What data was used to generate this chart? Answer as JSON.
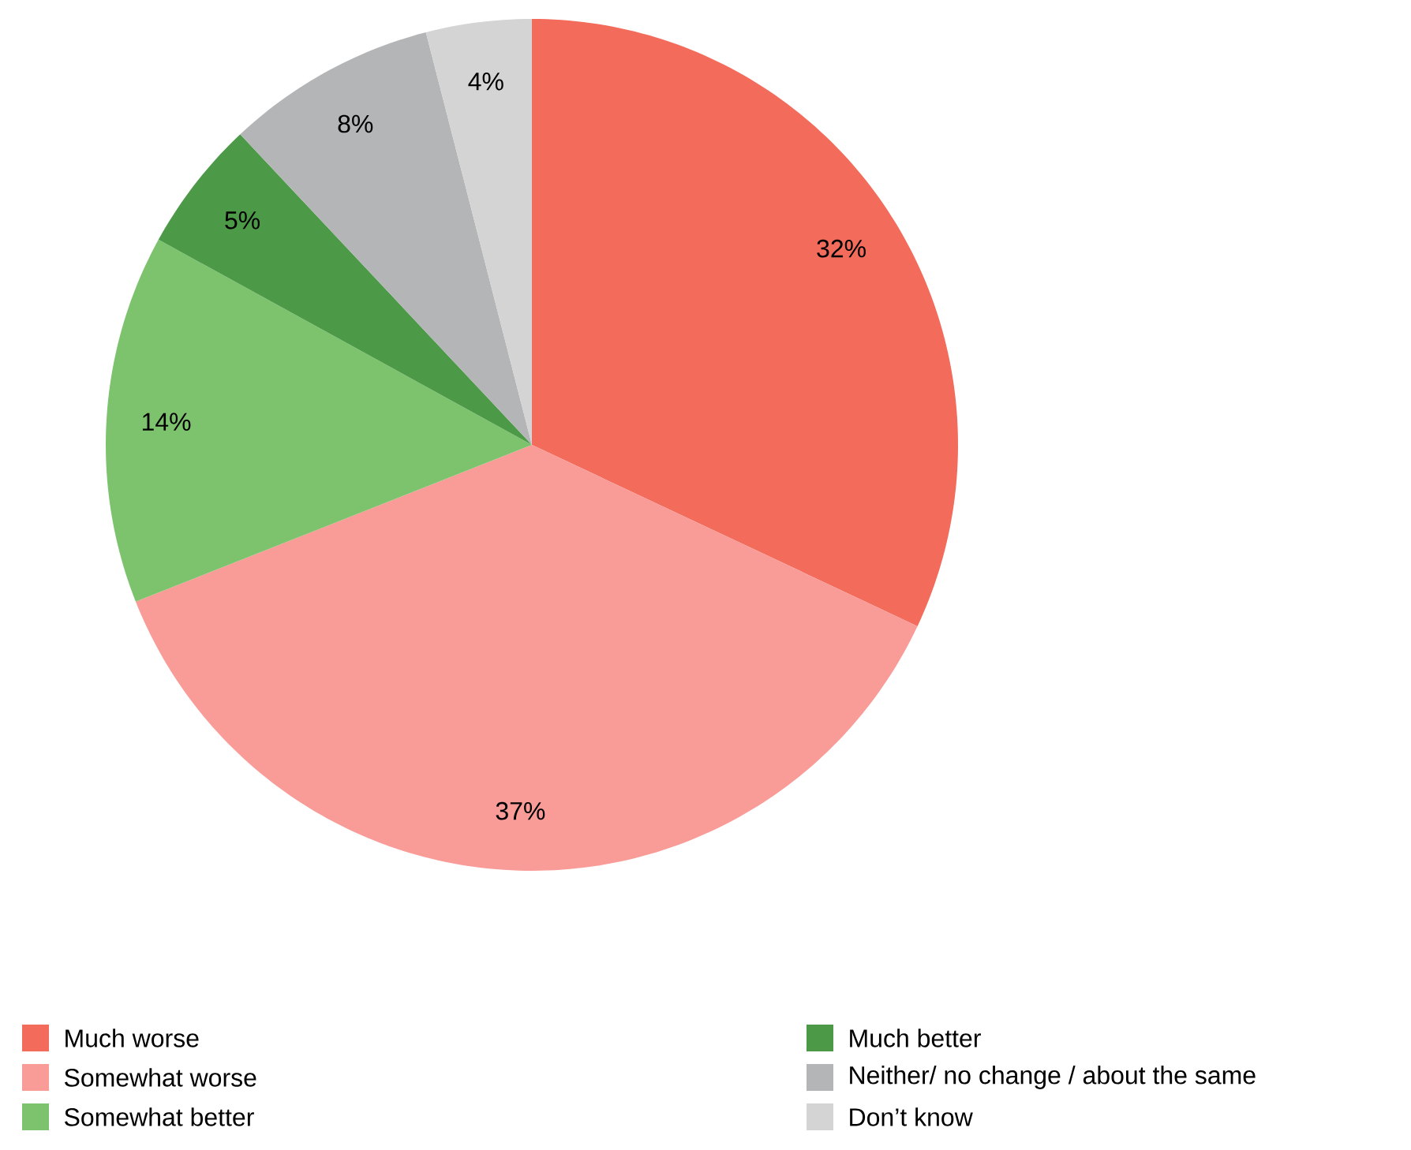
{
  "chart_data": {
    "type": "pie",
    "categories": [
      "Much worse",
      "Somewhat worse",
      "Somewhat better",
      "Much better",
      "Neither/ no change / about the same",
      "Don’t know"
    ],
    "values": [
      32,
      37,
      14,
      5,
      8,
      4
    ],
    "value_labels": [
      "32%",
      "37%",
      "14%",
      "5%",
      "8%",
      "4%"
    ],
    "colors": [
      "#f26b5b",
      "#f99b97",
      "#7dc36e",
      "#4c9a48",
      "#b4b5b7",
      "#d4d4d5"
    ],
    "legend": "bottom"
  }
}
